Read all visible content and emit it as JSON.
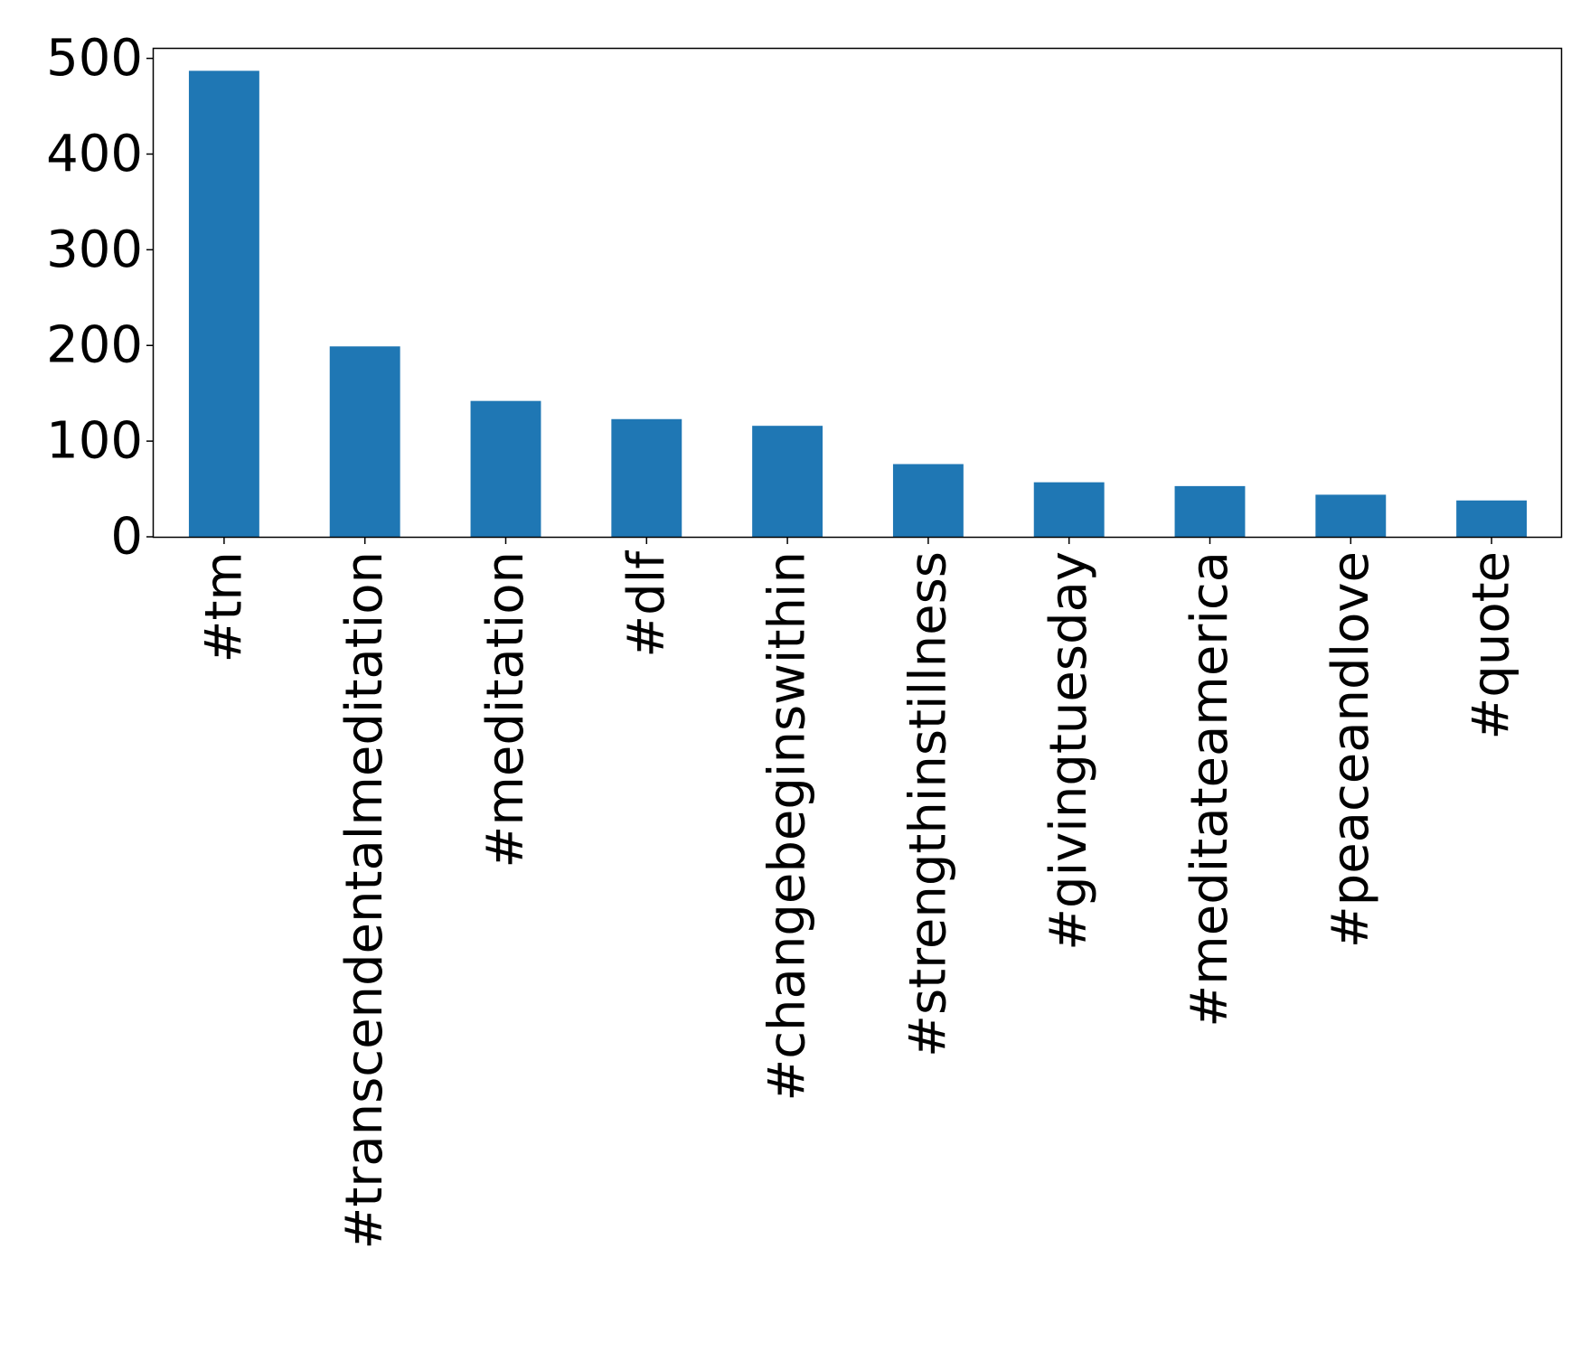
{
  "chart_data": {
    "type": "bar",
    "title": "",
    "xlabel": "",
    "ylabel": "",
    "categories": [
      "#tm",
      "#transcendentalmeditation",
      "#meditation",
      "#dlf",
      "#changebeginswithin",
      "#strengthinstillness",
      "#givingtuesday",
      "#meditateamerica",
      "#peaceandlove",
      "#quote"
    ],
    "values": [
      487,
      199,
      142,
      123,
      116,
      76,
      57,
      53,
      44,
      38
    ],
    "ylim": [
      0,
      510
    ],
    "yticks": [
      0,
      100,
      200,
      300,
      400,
      500
    ],
    "grid": false,
    "legend": "none",
    "bar_color": "#1f77b4"
  }
}
